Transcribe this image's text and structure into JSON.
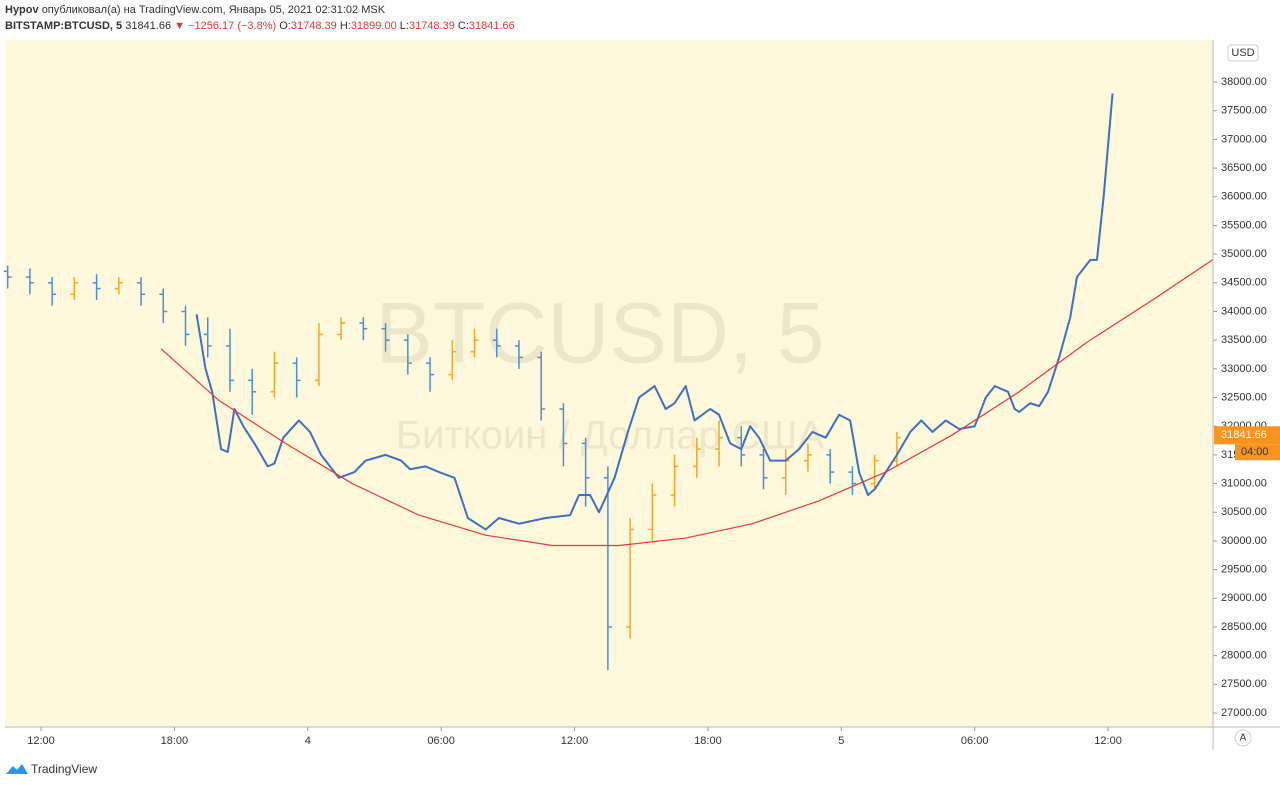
{
  "header": {
    "author": "Hypov",
    "published": "опубликовал(а) на TradingView.com, Январь 05, 2021 02:31:02 MSK",
    "symbol": "BITSTAMP:BTCUSD, 5",
    "last": "31841.66",
    "change": "▼ −1256.17 (−3.8%)",
    "o_label": "O:",
    "o": "31748.39",
    "h_label": "H:",
    "h": "31899.00",
    "l_label": "L:",
    "l": "31748.39",
    "c_label": "C:",
    "c": "31841.66"
  },
  "chart_data": {
    "type": "ohlc",
    "watermark": "BTCUSD, 5",
    "watermark_sub": "Биткоин / Доллар США",
    "currency": "USD",
    "scale_button": "A",
    "logo": "TradingView",
    "xlim": [
      -1.62,
      52.72
    ],
    "ylim": [
      26756,
      38733
    ],
    "xticks": [
      {
        "value": 0,
        "label": "12:00"
      },
      {
        "value": 6,
        "label": "18:00"
      },
      {
        "value": 12,
        "label": "4"
      },
      {
        "value": 18,
        "label": "06:00"
      },
      {
        "value": 24,
        "label": "12:00"
      },
      {
        "value": 30,
        "label": "18:00"
      },
      {
        "value": 36,
        "label": "5"
      },
      {
        "value": 42,
        "label": "06:00"
      },
      {
        "value": 48,
        "label": "12:00"
      }
    ],
    "yticks": [
      {
        "value": 27000,
        "label": "27000.00"
      },
      {
        "value": 27500,
        "label": "27500.00"
      },
      {
        "value": 28000,
        "label": "28000.00"
      },
      {
        "value": 28500,
        "label": "28500.00"
      },
      {
        "value": 29000,
        "label": "29000.00"
      },
      {
        "value": 29500,
        "label": "29500.00"
      },
      {
        "value": 30000,
        "label": "30000.00"
      },
      {
        "value": 30500,
        "label": "30500.00"
      },
      {
        "value": 31000,
        "label": "31000.00"
      },
      {
        "value": 31500,
        "label": "31500.00"
      },
      {
        "value": 32000,
        "label": "32000.00"
      },
      {
        "value": 32500,
        "label": "32500.00"
      },
      {
        "value": 33000,
        "label": "33000.00"
      },
      {
        "value": 33500,
        "label": "33500.00"
      },
      {
        "value": 34000,
        "label": "34000.00"
      },
      {
        "value": 34500,
        "label": "34500.00"
      },
      {
        "value": 35000,
        "label": "35000.00"
      },
      {
        "value": 35500,
        "label": "35500.00"
      },
      {
        "value": 36000,
        "label": "36000.00"
      },
      {
        "value": 36500,
        "label": "36500.00"
      },
      {
        "value": 37000,
        "label": "37000.00"
      },
      {
        "value": 37500,
        "label": "37500.00"
      },
      {
        "value": 38000,
        "label": "38000.00"
      }
    ],
    "up_color": "#f5a623",
    "down_color": "#4a8fd6",
    "bars": {
      "x": [
        -1.5,
        -0.5,
        0.5,
        1.5,
        2.5,
        3.5,
        4.5,
        5.5,
        6.5,
        7.5,
        8.5,
        9.5,
        10.5,
        11.5,
        12.5,
        13.5,
        14.5,
        15.5,
        16.5,
        17.5,
        18.5,
        19.5,
        20.5,
        21.5,
        22.5,
        23.5,
        24.5,
        25.5,
        26.5,
        27.5,
        28.5,
        29.5,
        30.5,
        31.5,
        32.5,
        33.5,
        34.5,
        35.5,
        36.5,
        37.5,
        38.5
      ],
      "open": [
        34700,
        34600,
        34500,
        34300,
        34500,
        34400,
        34500,
        34300,
        34000,
        33600,
        33400,
        32800,
        32600,
        33100,
        32800,
        33600,
        33800,
        33700,
        33500,
        33100,
        32900,
        33300,
        33500,
        33400,
        33200,
        32300,
        31700,
        31100,
        28500,
        30200,
        30800,
        31300,
        31600,
        31800,
        31500,
        31100,
        31400,
        31500,
        31200,
        31000,
        31400
      ],
      "high": [
        34800,
        34750,
        34600,
        34600,
        34650,
        34600,
        34600,
        34400,
        34100,
        33900,
        33700,
        33000,
        33300,
        33200,
        33800,
        33900,
        33900,
        33800,
        33600,
        33200,
        33500,
        33700,
        33700,
        33500,
        33300,
        32400,
        31800,
        31300,
        30400,
        31000,
        31500,
        31800,
        32100,
        32000,
        31600,
        31600,
        31700,
        31600,
        31300,
        31500,
        31900
      ],
      "low": [
        34400,
        34300,
        34100,
        34200,
        34200,
        34300,
        34100,
        33800,
        33400,
        33200,
        32600,
        32200,
        32500,
        32500,
        32700,
        33500,
        33500,
        33300,
        32900,
        32600,
        32800,
        33200,
        33200,
        33000,
        32100,
        31300,
        30600,
        27750,
        28300,
        30000,
        30600,
        31100,
        31300,
        31300,
        30900,
        30800,
        31200,
        31000,
        30800,
        30900,
        31300
      ],
      "close": [
        34600,
        34500,
        34300,
        34500,
        34400,
        34500,
        34300,
        34000,
        33600,
        33400,
        32800,
        32600,
        33100,
        32800,
        33600,
        33800,
        33700,
        33500,
        33100,
        32900,
        33300,
        33500,
        33400,
        33200,
        32300,
        31700,
        31100,
        28500,
        30200,
        30800,
        31300,
        31600,
        31800,
        31500,
        31100,
        31400,
        31500,
        31200,
        31000,
        31400,
        31800
      ]
    },
    "series": [
      {
        "color": "#3d6fc2",
        "x": [
          7.0,
          7.4,
          7.7,
          8.1,
          8.4,
          8.7,
          9.1,
          9.6,
          10.2,
          10.5,
          10.9,
          11.6,
          12.1,
          12.6,
          13.4,
          14.1,
          14.6,
          15.5,
          16.2,
          16.6,
          17.3,
          17.9,
          18.6,
          19.2,
          20.0,
          20.6,
          21.5,
          22.7,
          23.8,
          24.2,
          24.7,
          25.1,
          25.8,
          26.4,
          26.9,
          27.6,
          28.1,
          28.5,
          29.0,
          29.4,
          30.1,
          30.5,
          31.0,
          31.5,
          31.9,
          32.3,
          32.8,
          33.5,
          34.1,
          34.7,
          35.3,
          35.9,
          36.4,
          36.8,
          37.2,
          37.5,
          38.0,
          38.5,
          39.1,
          39.6,
          40.1,
          40.7,
          41.3,
          42.0,
          42.5,
          42.9,
          43.5,
          43.8,
          44.0,
          44.5,
          44.9,
          45.3,
          45.8,
          46.3,
          46.6,
          47.2,
          47.5,
          47.8,
          48.2
        ],
        "values": [
          33950,
          33000,
          32600,
          31600,
          31550,
          32300,
          32000,
          31700,
          31300,
          31350,
          31800,
          32100,
          31900,
          31500,
          31100,
          31200,
          31400,
          31500,
          31400,
          31250,
          31300,
          31200,
          31100,
          30400,
          30200,
          30400,
          30300,
          30400,
          30450,
          30800,
          30800,
          30500,
          31100,
          31900,
          32500,
          32700,
          32300,
          32400,
          32700,
          32100,
          32300,
          32200,
          31700,
          31600,
          32000,
          31800,
          31400,
          31400,
          31600,
          31900,
          31800,
          32200,
          32100,
          31200,
          30800,
          30900,
          31200,
          31500,
          31900,
          32100,
          31900,
          32100,
          31950,
          32000,
          32500,
          32700,
          32600,
          32300,
          32250,
          32400,
          32350,
          32600,
          33200,
          33900,
          34600,
          34900,
          34900,
          36000,
          37800
        ]
      },
      {
        "color": "#e53935",
        "x": [
          5.4,
          8,
          11,
          14,
          17,
          20,
          23,
          26,
          29,
          32,
          35,
          38,
          41,
          44,
          47,
          50,
          52.7
        ],
        "values": [
          33350,
          32450,
          31700,
          31000,
          30450,
          30100,
          29920,
          29920,
          30050,
          30300,
          30700,
          31200,
          31850,
          32600,
          33450,
          34200,
          34900
        ]
      }
    ],
    "price_label": {
      "value": 31841.66,
      "label": "31841.66",
      "countdown": "04:00",
      "color": "#f7941d"
    }
  }
}
